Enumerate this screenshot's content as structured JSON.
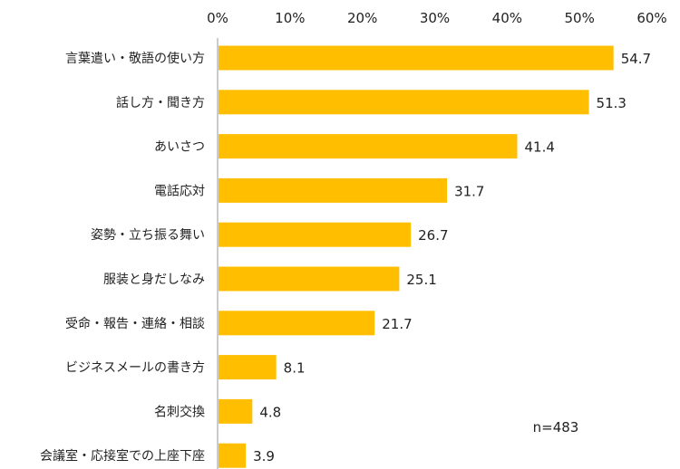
{
  "chart_data": {
    "type": "bar",
    "orientation": "horizontal",
    "categories": [
      "言葉遣い・敬語の使い方",
      "話し方・聞き方",
      "あいさつ",
      "電話応対",
      "姿勢・立ち振る舞い",
      "服装と身だしなみ",
      "受命・報告・連絡・相談",
      "ビジネスメールの書き方",
      "名刺交換",
      "会議室・応接室での上座下座"
    ],
    "values": [
      54.7,
      51.3,
      41.4,
      31.7,
      26.7,
      25.1,
      21.7,
      8.1,
      4.8,
      3.9
    ],
    "value_labels": [
      "54.7",
      "51.3",
      "41.4",
      "31.7",
      "26.7",
      "25.1",
      "21.7",
      "8.1",
      "4.8",
      "3.9"
    ],
    "xlim": [
      0,
      60
    ],
    "xticks": [
      0,
      10,
      20,
      30,
      40,
      50,
      60
    ],
    "xtick_labels": [
      "0%",
      "10%",
      "20%",
      "30%",
      "40%",
      "50%",
      "60%"
    ],
    "xaxis_position": "top",
    "grid": false,
    "legend": "none",
    "bar_color": "#FFBE00",
    "axis_color": "#999999",
    "annotation": "n=483"
  }
}
